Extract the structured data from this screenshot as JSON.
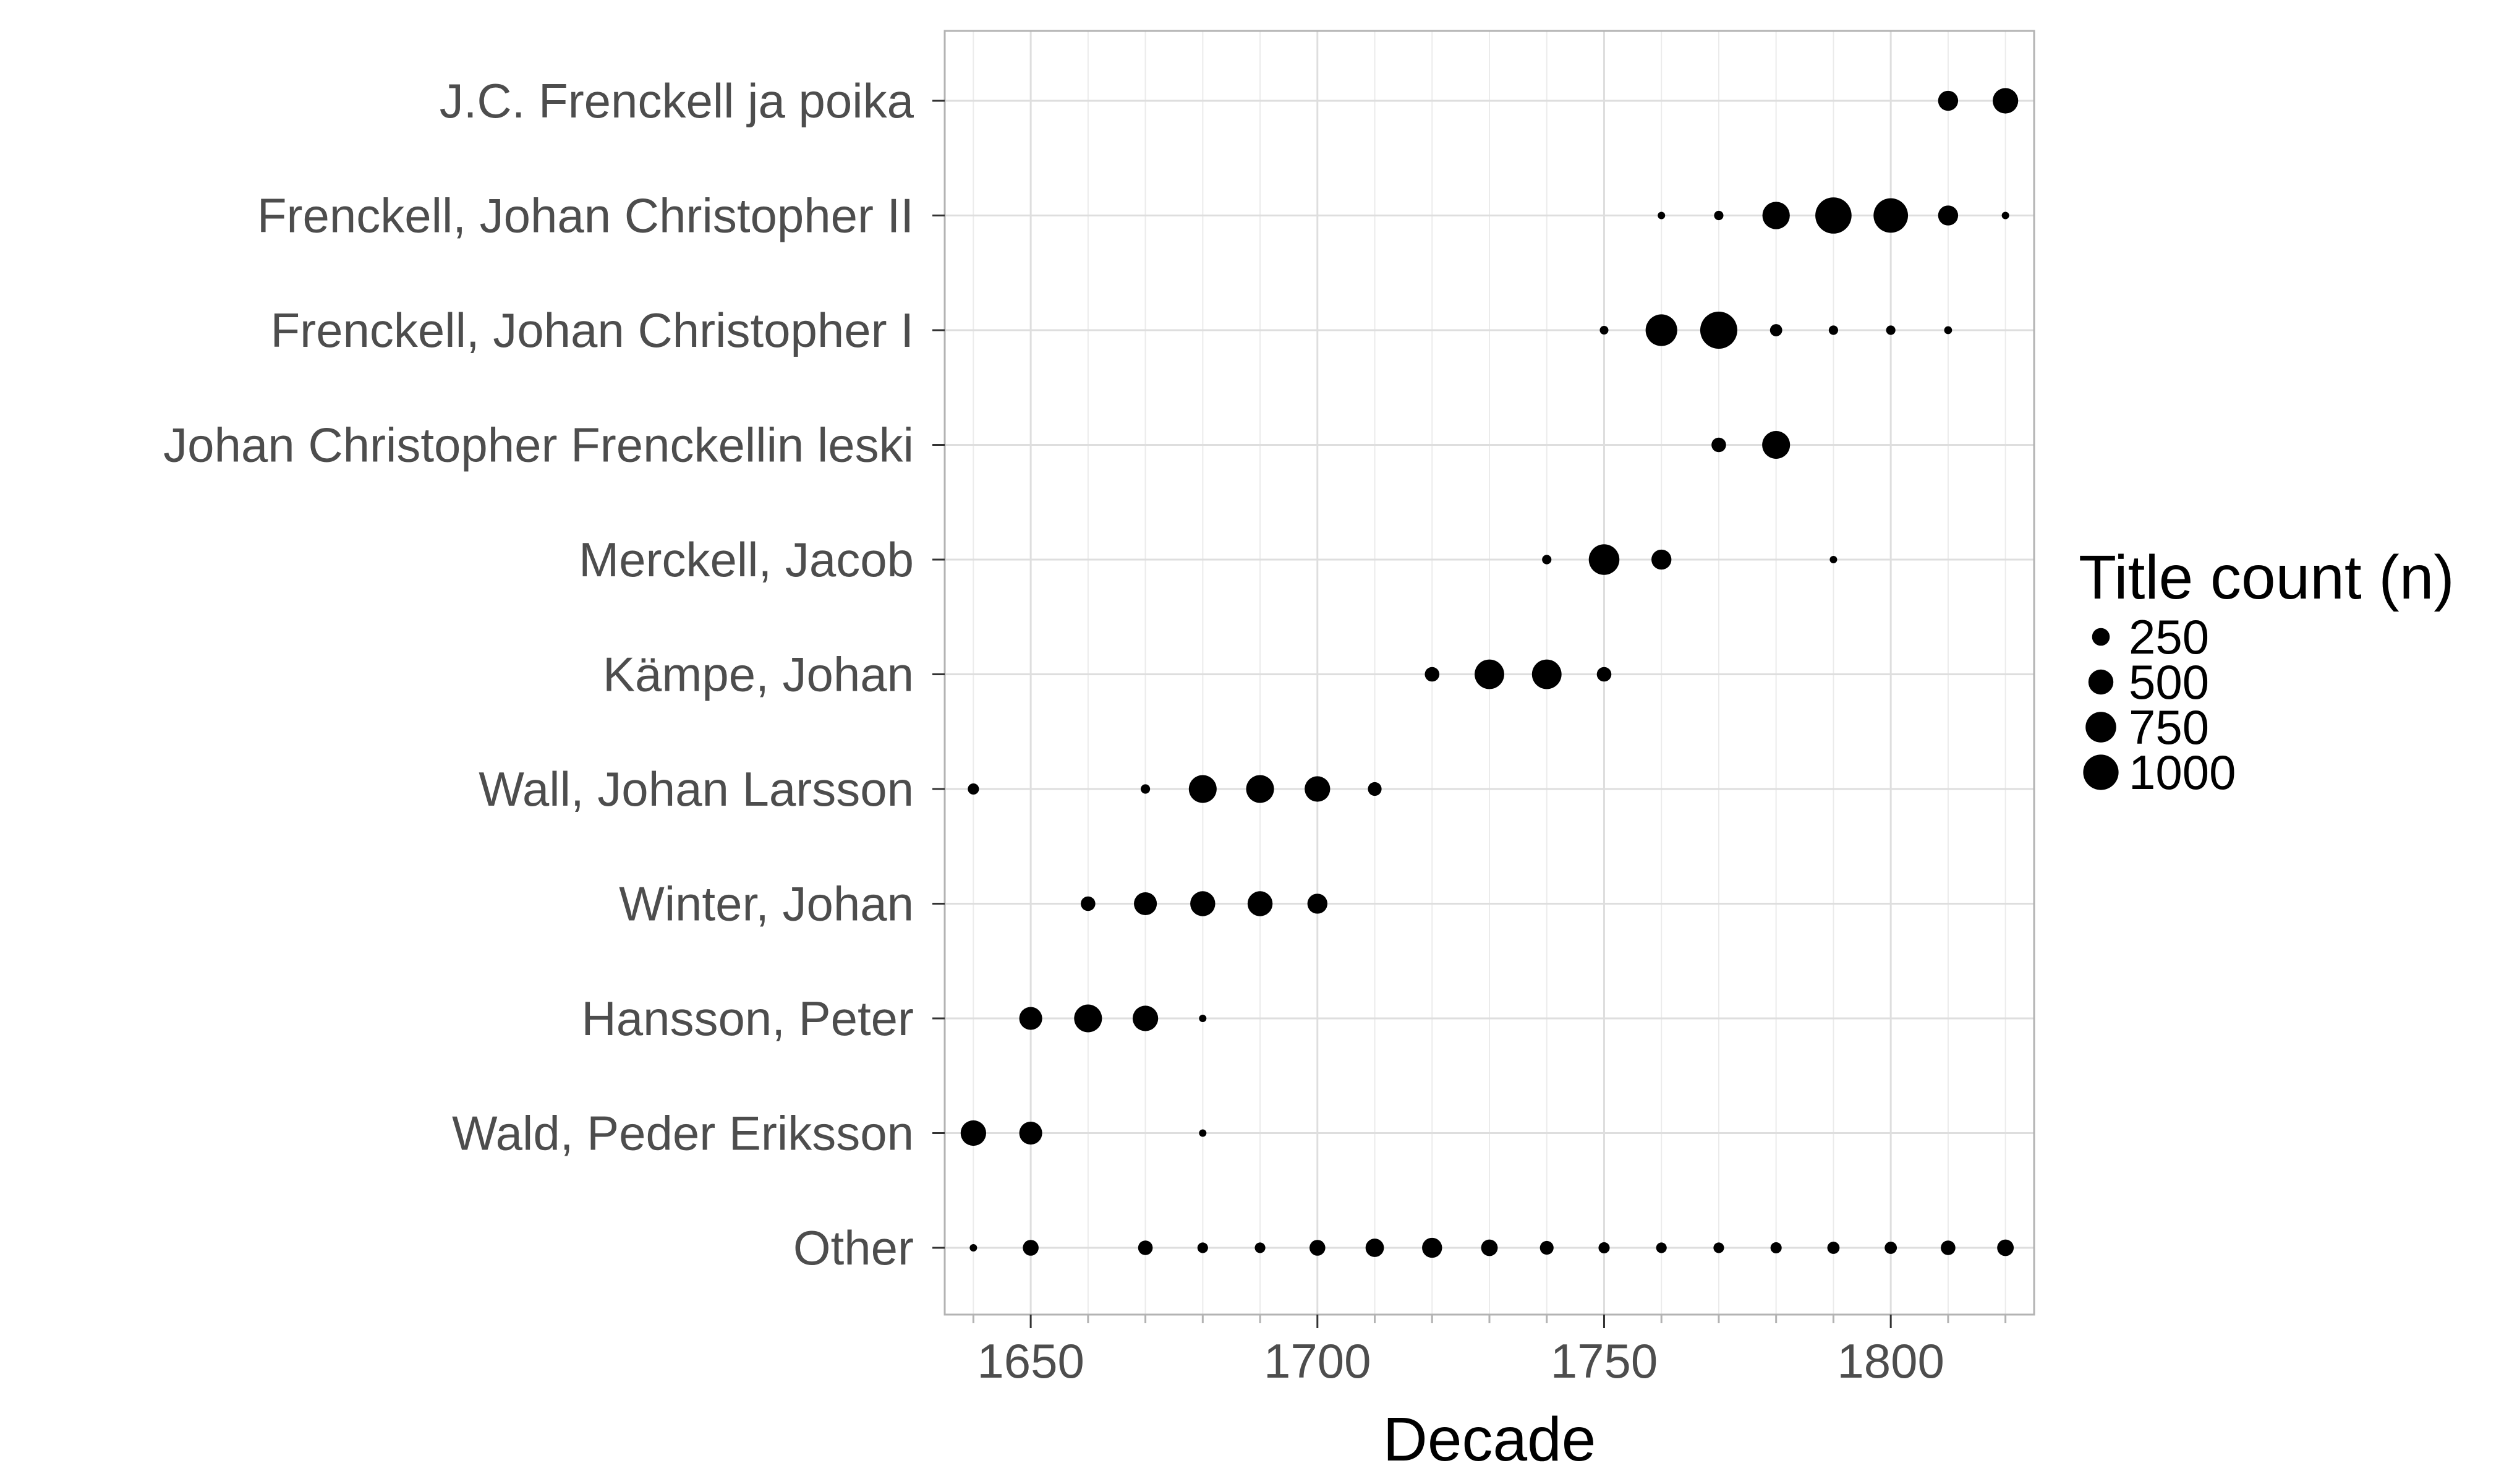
{
  "chart_data": {
    "type": "scatter",
    "xlabel": "Decade",
    "ylabel": "",
    "xlim": [
      1635,
      1825
    ],
    "x_ticks": [
      1650,
      1700,
      1750,
      1800
    ],
    "categories": [
      "J.C. Frenckell ja poika",
      "Frenckell, Johan Christopher II",
      "Frenckell, Johan Christopher I",
      "Johan Christopher Frenckellin leski",
      "Merckell, Jacob",
      "Kämpe, Johan",
      "Wall, Johan Larsson",
      "Winter, Johan",
      "Hansson, Peter",
      "Wald, Peder Eriksson",
      "Other"
    ],
    "grid": true,
    "legend": {
      "title": "Title count (n)",
      "placement": "right",
      "entries": [
        {
          "label": "250",
          "value": 250
        },
        {
          "label": "500",
          "value": 500
        },
        {
          "label": "750",
          "value": 750
        },
        {
          "label": "1000",
          "value": 1000
        }
      ]
    },
    "size_max": 1100,
    "points": [
      {
        "printer": "J.C. Frenckell ja poika",
        "decade": 1810,
        "n": 320
      },
      {
        "printer": "J.C. Frenckell ja poika",
        "decade": 1820,
        "n": 520
      },
      {
        "printer": "Frenckell, Johan Christopher II",
        "decade": 1760,
        "n": 40
      },
      {
        "printer": "Frenckell, Johan Christopher II",
        "decade": 1770,
        "n": 70
      },
      {
        "printer": "Frenckell, Johan Christopher II",
        "decade": 1780,
        "n": 600
      },
      {
        "printer": "Frenckell, Johan Christopher II",
        "decade": 1790,
        "n": 1050
      },
      {
        "printer": "Frenckell, Johan Christopher II",
        "decade": 1800,
        "n": 950
      },
      {
        "printer": "Frenckell, Johan Christopher II",
        "decade": 1810,
        "n": 320
      },
      {
        "printer": "Frenckell, Johan Christopher II",
        "decade": 1820,
        "n": 40
      },
      {
        "printer": "Frenckell, Johan Christopher I",
        "decade": 1750,
        "n": 60
      },
      {
        "printer": "Frenckell, Johan Christopher I",
        "decade": 1760,
        "n": 800
      },
      {
        "printer": "Frenckell, Johan Christopher I",
        "decade": 1770,
        "n": 1100
      },
      {
        "printer": "Frenckell, Johan Christopher I",
        "decade": 1780,
        "n": 120
      },
      {
        "printer": "Frenckell, Johan Christopher I",
        "decade": 1790,
        "n": 70
      },
      {
        "printer": "Frenckell, Johan Christopher I",
        "decade": 1800,
        "n": 70
      },
      {
        "printer": "Frenckell, Johan Christopher I",
        "decade": 1810,
        "n": 50
      },
      {
        "printer": "Johan Christopher Frenckellin leski",
        "decade": 1770,
        "n": 170
      },
      {
        "printer": "Johan Christopher Frenckellin leski",
        "decade": 1780,
        "n": 620
      },
      {
        "printer": "Merckell, Jacob",
        "decade": 1740,
        "n": 70
      },
      {
        "printer": "Merckell, Jacob",
        "decade": 1750,
        "n": 750
      },
      {
        "printer": "Merckell, Jacob",
        "decade": 1760,
        "n": 320
      },
      {
        "printer": "Merckell, Jacob",
        "decade": 1790,
        "n": 40
      },
      {
        "printer": "Kämpe, Johan",
        "decade": 1720,
        "n": 170
      },
      {
        "printer": "Kämpe, Johan",
        "decade": 1730,
        "n": 700
      },
      {
        "printer": "Kämpe, Johan",
        "decade": 1740,
        "n": 700
      },
      {
        "printer": "Kämpe, Johan",
        "decade": 1750,
        "n": 170
      },
      {
        "printer": "Wall, Johan Larsson",
        "decade": 1640,
        "n": 100
      },
      {
        "printer": "Wall, Johan Larsson",
        "decade": 1670,
        "n": 70
      },
      {
        "printer": "Wall, Johan Larsson",
        "decade": 1680,
        "n": 620
      },
      {
        "printer": "Wall, Johan Larsson",
        "decade": 1690,
        "n": 620
      },
      {
        "printer": "Wall, Johan Larsson",
        "decade": 1700,
        "n": 520
      },
      {
        "printer": "Wall, Johan Larsson",
        "decade": 1710,
        "n": 150
      },
      {
        "printer": "Winter, Johan",
        "decade": 1660,
        "n": 170
      },
      {
        "printer": "Winter, Johan",
        "decade": 1670,
        "n": 420
      },
      {
        "printer": "Winter, Johan",
        "decade": 1680,
        "n": 500
      },
      {
        "printer": "Winter, Johan",
        "decade": 1690,
        "n": 500
      },
      {
        "printer": "Winter, Johan",
        "decade": 1700,
        "n": 320
      },
      {
        "printer": "Hansson, Peter",
        "decade": 1650,
        "n": 420
      },
      {
        "printer": "Hansson, Peter",
        "decade": 1660,
        "n": 620
      },
      {
        "printer": "Hansson, Peter",
        "decade": 1670,
        "n": 520
      },
      {
        "printer": "Hansson, Peter",
        "decade": 1680,
        "n": 40
      },
      {
        "printer": "Wald, Peder Eriksson",
        "decade": 1640,
        "n": 520
      },
      {
        "printer": "Wald, Peder Eriksson",
        "decade": 1650,
        "n": 420
      },
      {
        "printer": "Wald, Peder Eriksson",
        "decade": 1680,
        "n": 30
      },
      {
        "printer": "Other",
        "decade": 1640,
        "n": 40
      },
      {
        "printer": "Other",
        "decade": 1650,
        "n": 200
      },
      {
        "printer": "Other",
        "decade": 1670,
        "n": 170
      },
      {
        "printer": "Other",
        "decade": 1680,
        "n": 90
      },
      {
        "printer": "Other",
        "decade": 1690,
        "n": 90
      },
      {
        "printer": "Other",
        "decade": 1700,
        "n": 200
      },
      {
        "printer": "Other",
        "decade": 1710,
        "n": 270
      },
      {
        "printer": "Other",
        "decade": 1720,
        "n": 320
      },
      {
        "printer": "Other",
        "decade": 1730,
        "n": 220
      },
      {
        "printer": "Other",
        "decade": 1740,
        "n": 150
      },
      {
        "printer": "Other",
        "decade": 1750,
        "n": 100
      },
      {
        "printer": "Other",
        "decade": 1760,
        "n": 90
      },
      {
        "printer": "Other",
        "decade": 1770,
        "n": 90
      },
      {
        "printer": "Other",
        "decade": 1780,
        "n": 100
      },
      {
        "printer": "Other",
        "decade": 1790,
        "n": 120
      },
      {
        "printer": "Other",
        "decade": 1800,
        "n": 120
      },
      {
        "printer": "Other",
        "decade": 1810,
        "n": 170
      },
      {
        "printer": "Other",
        "decade": 1820,
        "n": 220
      }
    ]
  }
}
